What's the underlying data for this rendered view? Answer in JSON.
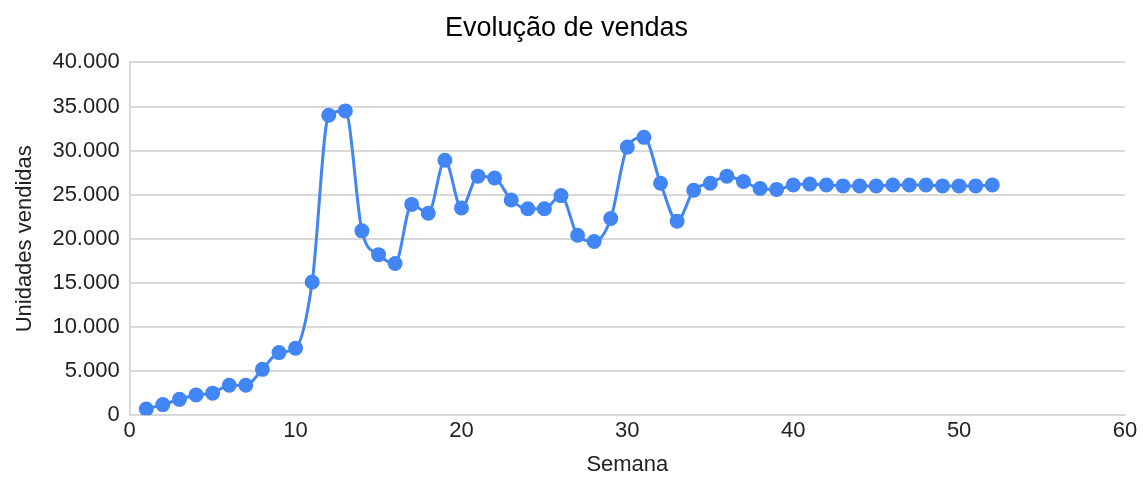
{
  "chart_data": {
    "type": "line",
    "title": "Evolução de vendas",
    "xlabel": "Semana",
    "ylabel": "Unidades vendidas",
    "x": [
      1,
      2,
      3,
      4,
      5,
      6,
      7,
      8,
      9,
      10,
      11,
      12,
      13,
      14,
      15,
      16,
      17,
      18,
      19,
      20,
      21,
      22,
      23,
      24,
      25,
      26,
      27,
      28,
      29,
      30,
      31,
      32,
      33,
      34,
      35,
      36,
      37,
      38,
      39,
      40,
      41,
      42,
      43,
      44,
      45,
      46,
      47,
      48,
      49,
      50,
      51,
      52
    ],
    "series": [
      {
        "color": "#4285f4",
        "values": [
          700,
          1200,
          1800,
          2300,
          2500,
          3400,
          3400,
          5200,
          7100,
          7600,
          15100,
          34000,
          34500,
          20900,
          18200,
          17200,
          23900,
          22900,
          28900,
          23500,
          27100,
          26900,
          24400,
          23400,
          23400,
          24900,
          20400,
          19700,
          22300,
          30400,
          31500,
          26300,
          22000,
          25500,
          26300,
          27100,
          26500,
          25700,
          25600,
          26100,
          26200,
          26100,
          26000,
          26000,
          26000,
          26100,
          26100,
          26100,
          26000,
          26000,
          26000,
          26100
        ]
      }
    ],
    "xlim": [
      0,
      60
    ],
    "xticks": [
      0,
      10,
      20,
      30,
      40,
      50,
      60
    ],
    "ylim": [
      0,
      40000
    ],
    "yticks": [
      0,
      {
        "value": 5000,
        "label": "5.000"
      },
      {
        "value": 10000,
        "label": "10.000"
      },
      {
        "value": 15000,
        "label": "15.000"
      },
      {
        "value": 20000,
        "label": "20.000"
      },
      {
        "value": 25000,
        "label": "25.000"
      },
      {
        "value": 30000,
        "label": "30.000"
      },
      {
        "value": 35000,
        "label": "35.000"
      },
      {
        "value": 40000,
        "label": "40.000"
      }
    ],
    "grid": "y",
    "legend": false,
    "marker": "circle",
    "line_style": "solid"
  }
}
